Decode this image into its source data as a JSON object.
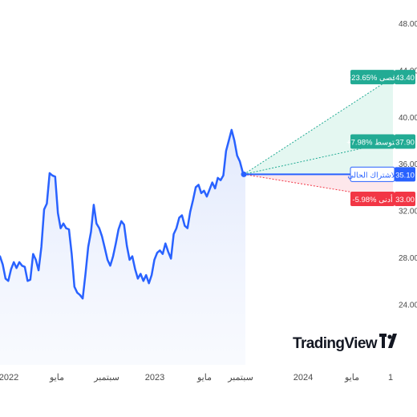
{
  "chart_data": {
    "type": "line",
    "title": "",
    "xlabel": "",
    "ylabel": "",
    "x_tick_labels": [
      "2022",
      "مايو",
      "سبتمبر",
      "2023",
      "مايو",
      "سبتمبر",
      "2024",
      "مايو",
      "1"
    ],
    "y_tick_labels": [
      "24.00",
      "28.00",
      "32.00",
      "36.00",
      "40.00",
      "44.00",
      "48.00"
    ],
    "ylim": [
      21.5,
      48
    ],
    "grid": false,
    "series": [
      {
        "values": [
          28.1,
          27.4,
          26.2,
          26.0,
          27.0,
          27.6,
          27.1,
          27.6,
          27.3,
          27.2,
          26.0,
          26.1,
          28.3,
          27.8,
          26.9,
          28.9,
          32.1,
          32.6,
          35.2,
          35.0,
          34.9,
          31.8,
          30.5,
          30.9,
          30.5,
          30.4,
          28.3,
          25.5,
          25.0,
          24.8,
          24.5,
          26.6,
          28.9,
          30.2,
          32.5,
          30.9,
          30.5,
          29.8,
          28.8,
          27.8,
          27.3,
          28.1,
          29.2,
          30.4,
          31.1,
          30.8,
          29.0,
          27.8,
          28.1,
          27.0,
          26.2,
          26.6,
          26.0,
          26.5,
          25.8,
          26.5,
          27.8,
          28.4,
          28.6,
          28.3,
          29.2,
          28.5,
          27.9,
          30.0,
          30.5,
          31.4,
          31.6,
          30.7,
          30.5,
          31.9,
          32.9,
          34.0,
          34.2,
          33.5,
          33.7,
          33.2,
          33.8,
          34.4,
          33.9,
          34.8,
          34.6,
          35.0,
          37.1,
          38.0,
          38.9,
          38.0,
          36.7,
          36.2,
          35.3,
          35.0
        ]
      }
    ],
    "current_price": {
      "label": "الاشتراك الحالي",
      "value": "35.10"
    },
    "forecast": [
      {
        "label": "+23.65% أقصى",
        "value": "43.40",
        "color": "#22ab94"
      },
      {
        "label": "+7.98% متوسط",
        "value": "37.90",
        "color": "#22ab94"
      },
      {
        "label": "-5.98% أدنى",
        "value": "33.00",
        "color": "#f23645"
      }
    ],
    "colors": {
      "line": "#2962ff",
      "area_fill": "#e9effd",
      "up": "#22ab94",
      "down": "#f23645",
      "current": "#2962ff",
      "axis_text": "#4a4a4a"
    },
    "watermark": "TradingView"
  }
}
